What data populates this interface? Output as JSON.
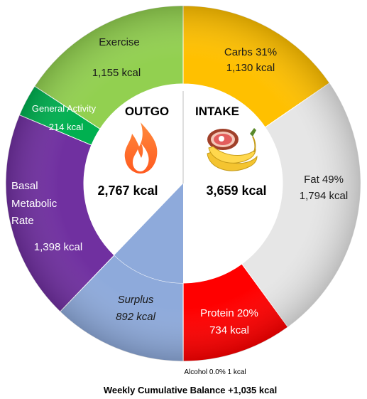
{
  "chart_data": {
    "type": "pie",
    "style": "donut",
    "outgo": {
      "title": "OUTGO",
      "total": "2,767 kcal",
      "icon": "fire-icon",
      "segments": [
        {
          "key": "exercise",
          "name": "Exercise",
          "value": 1155,
          "value_label": "1,155 kcal",
          "color": "#92d050"
        },
        {
          "key": "general-activity",
          "name": "General Activity",
          "value": 214,
          "value_label": "214 kcal",
          "color": "#00b050"
        },
        {
          "key": "basal-metabolic-rate",
          "name": "Basal Metabolic Rate",
          "name_lines": [
            "Basal",
            "Metabolic",
            "Rate"
          ],
          "value": 1398,
          "value_label": "1,398 kcal",
          "color": "#7030a0"
        },
        {
          "key": "surplus",
          "name": "Surplus",
          "value": 892,
          "value_label": "892 kcal",
          "color": "#8eaadb"
        }
      ]
    },
    "intake": {
      "title": "INTAKE",
      "total": "3,659 kcal",
      "icon": "food-icon",
      "segments": [
        {
          "key": "carbs",
          "name": "Carbs 31%",
          "value": 1130,
          "value_label": "1,130 kcal",
          "color": "#ffc000"
        },
        {
          "key": "fat",
          "name": "Fat 49%",
          "value": 1794,
          "value_label": "1,794 kcal",
          "color": "#e6e6e6"
        },
        {
          "key": "protein",
          "name": "Protein 20%",
          "value": 734,
          "value_label": "734 kcal",
          "color": "#ff0000"
        },
        {
          "key": "alcohol",
          "name": "Alcohol 0.0%",
          "value": 1,
          "value_label": "1 kcal",
          "color": "#000000"
        }
      ]
    },
    "alcohol_note": "Alcohol 0.0% 1 kcal",
    "caption": "Weekly Cumulative Balance +1,035 kcal"
  }
}
